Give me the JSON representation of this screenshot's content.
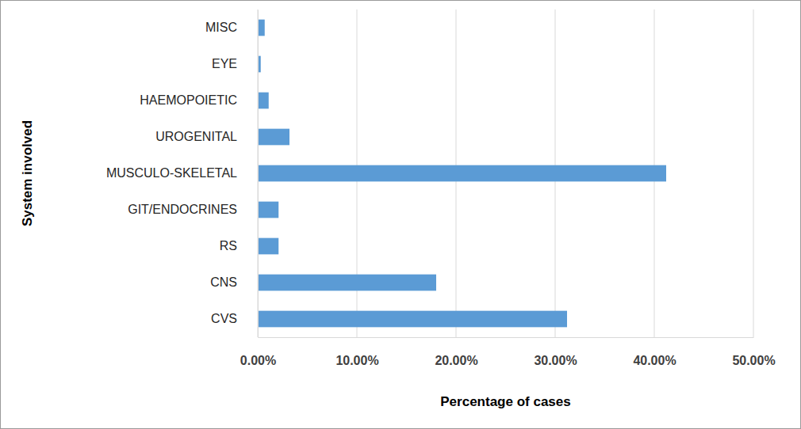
{
  "chart_data": {
    "type": "bar",
    "orientation": "horizontal",
    "x_label": "Percentage of cases",
    "y_label": "System involved",
    "categories": [
      "MISC",
      "EYE",
      "HAEMOPOIETIC",
      "UROGENITAL",
      "MUSCULO-SKELETAL",
      "GIT/ENDOCRINES",
      "RS",
      "CNS",
      "CVS"
    ],
    "values": [
      0.7,
      0.3,
      1.1,
      3.2,
      41.2,
      2.1,
      2.1,
      18.0,
      31.2
    ],
    "color": "#5b9bd5",
    "xlim": [
      0,
      50
    ],
    "xticks": [
      {
        "value": 0,
        "label": "0.00%"
      },
      {
        "value": 10,
        "label": "10.00%"
      },
      {
        "value": 20,
        "label": "20.00%"
      },
      {
        "value": 30,
        "label": "30.00%"
      },
      {
        "value": 40,
        "label": "40.00%"
      },
      {
        "value": 50,
        "label": "50.00%"
      }
    ],
    "grid": true
  }
}
